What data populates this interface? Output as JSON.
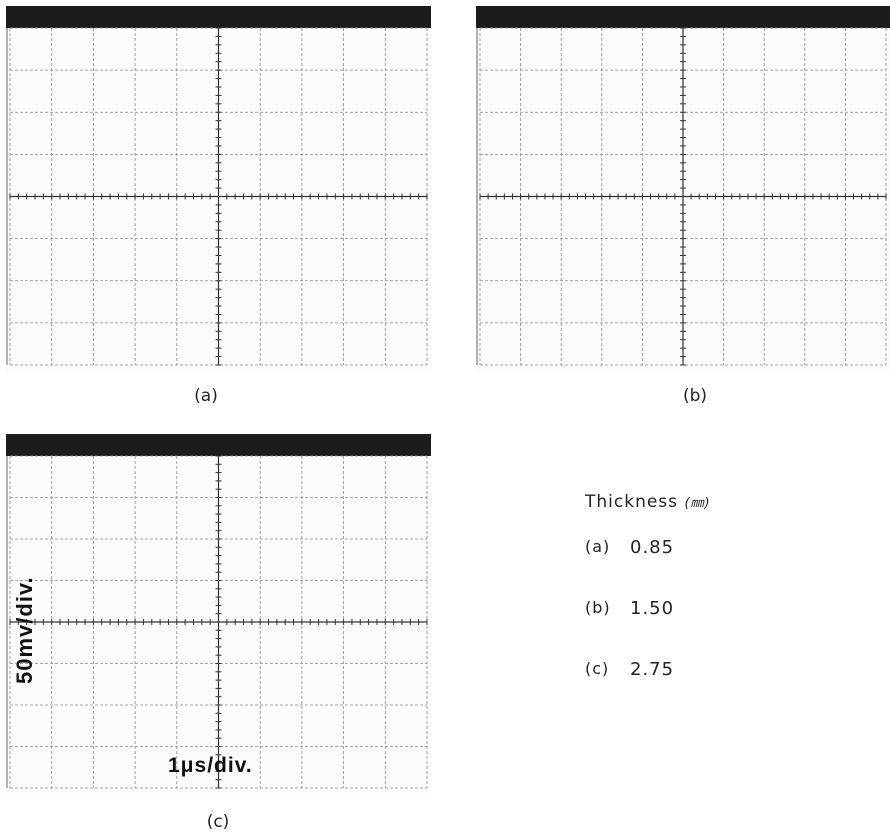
{
  "figure": {
    "scopes": [
      {
        "id": "a",
        "caption": "(a)"
      },
      {
        "id": "b",
        "caption": "(b)"
      },
      {
        "id": "c",
        "caption": "(c)"
      }
    ],
    "vertical_scale": "50mv/div.",
    "horizontal_scale": "1μs/div.",
    "grid_divisions": {
      "horizontal": 10,
      "vertical": 8
    }
  },
  "legend": {
    "title": "Thickness",
    "unit": "(㎜)",
    "rows": [
      {
        "label": "(a)",
        "value": "0.85"
      },
      {
        "label": "(b)",
        "value": "1.50"
      },
      {
        "label": "(c)",
        "value": "2.75"
      }
    ]
  }
}
